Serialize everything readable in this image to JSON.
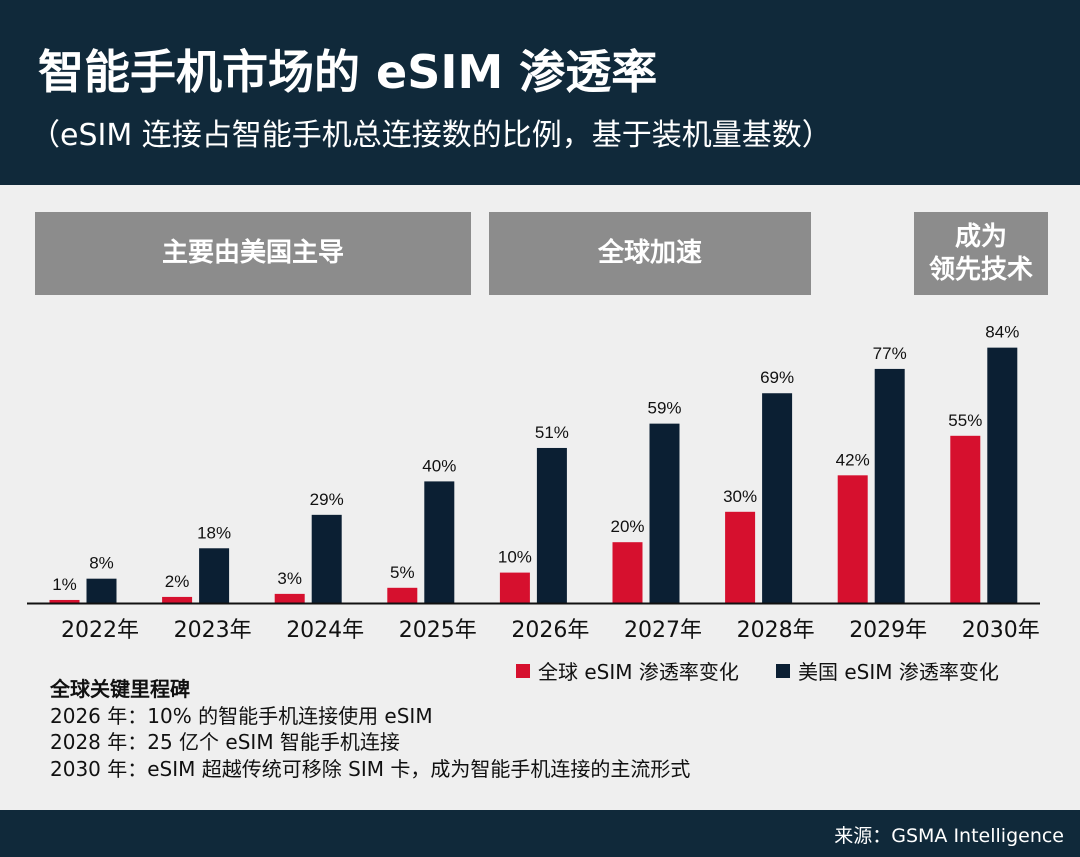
{
  "header": {
    "title": "智能手机市场的 eSIM 渗透率",
    "subtitle": "（eSIM 连接占智能手机总连接数的比例，基于装机量基数）"
  },
  "banners": [
    "主要由美国主导",
    "全球加速",
    "成为\n领先技术"
  ],
  "chart_data": {
    "type": "bar",
    "categories": [
      "2022年",
      "2023年",
      "2024年",
      "2025年",
      "2026年",
      "2027年",
      "2028年",
      "2029年",
      "2030年"
    ],
    "series": [
      {
        "name": "全球 eSIM 渗透率变化",
        "color": "#d6102e",
        "values": [
          1,
          2,
          3,
          5,
          10,
          20,
          30,
          42,
          55
        ],
        "labels": [
          "1%",
          "2%",
          "3%",
          "5%",
          "10%",
          "20%",
          "30%",
          "42%",
          "55%"
        ]
      },
      {
        "name": "美国 eSIM 渗透率变化",
        "color": "#0b1f33",
        "values": [
          8,
          18,
          29,
          40,
          51,
          59,
          69,
          77,
          84
        ],
        "labels": [
          "8%",
          "18%",
          "29%",
          "40%",
          "51%",
          "59%",
          "69%",
          "77%",
          "84%"
        ]
      }
    ],
    "ylim": [
      0,
      100
    ],
    "grid": false,
    "legend": "bottom-right"
  },
  "milestones": {
    "heading": "全球关键里程碑",
    "items": [
      "2026 年：10% 的智能手机连接使用 eSIM",
      "2028 年：25 亿个 eSIM 智能手机连接",
      "2030 年：eSIM 超越传统可移除 SIM 卡，成为智能手机连接的主流形式"
    ]
  },
  "footer": {
    "source": "来源：GSMA  Intelligence"
  }
}
